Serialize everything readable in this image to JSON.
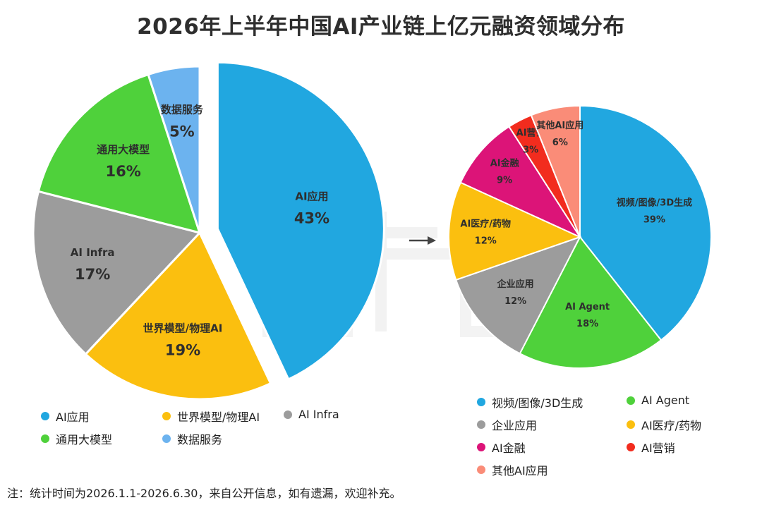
{
  "title": "2026年上半年中国AI产业链上亿元融资领域分布",
  "footnote": "注：统计时间为2026.1.1-2026.6.30，来自公开信息，如有遗漏，欢迎补充。",
  "chart_data": [
    {
      "type": "pie",
      "unit": "%",
      "slices": [
        {
          "label": "AI应用",
          "value": 43,
          "color": "#21a7e0",
          "exploded": true
        },
        {
          "label": "世界模型/物理AI",
          "value": 19,
          "color": "#fbbf0f"
        },
        {
          "label": "AI Infra",
          "value": 17,
          "color": "#9c9c9c"
        },
        {
          "label": "通用大模型",
          "value": 16,
          "color": "#4fd13b"
        },
        {
          "label": "数据服务",
          "value": 5,
          "color": "#6cb3ef"
        }
      ],
      "legend": [
        "AI应用",
        "世界模型/物理AI",
        "AI Infra",
        "通用大模型",
        "数据服务"
      ],
      "legend_position": "bottom"
    },
    {
      "type": "pie",
      "unit": "%",
      "breakdown_of": "AI应用",
      "slices": [
        {
          "label": "视频/图像/3D生成",
          "value": 39,
          "color": "#21a7e0"
        },
        {
          "label": "AI Agent",
          "value": 18,
          "color": "#4fd13b"
        },
        {
          "label": "企业应用",
          "value": 12,
          "color": "#9c9c9c"
        },
        {
          "label": "AI医疗/药物",
          "value": 12,
          "color": "#fbbf0f"
        },
        {
          "label": "AI金融",
          "value": 9,
          "color": "#dc1478"
        },
        {
          "label": "AI营销",
          "value": 3,
          "color": "#f22c1e"
        },
        {
          "label": "其他AI应用",
          "value": 6,
          "color": "#fa8c78"
        }
      ],
      "legend": [
        "视频/图像/3D生成",
        "AI Agent",
        "企业应用",
        "AI医疗/药物",
        "AI金融",
        "AI营销",
        "其他AI应用"
      ],
      "legend_position": "bottom"
    }
  ]
}
